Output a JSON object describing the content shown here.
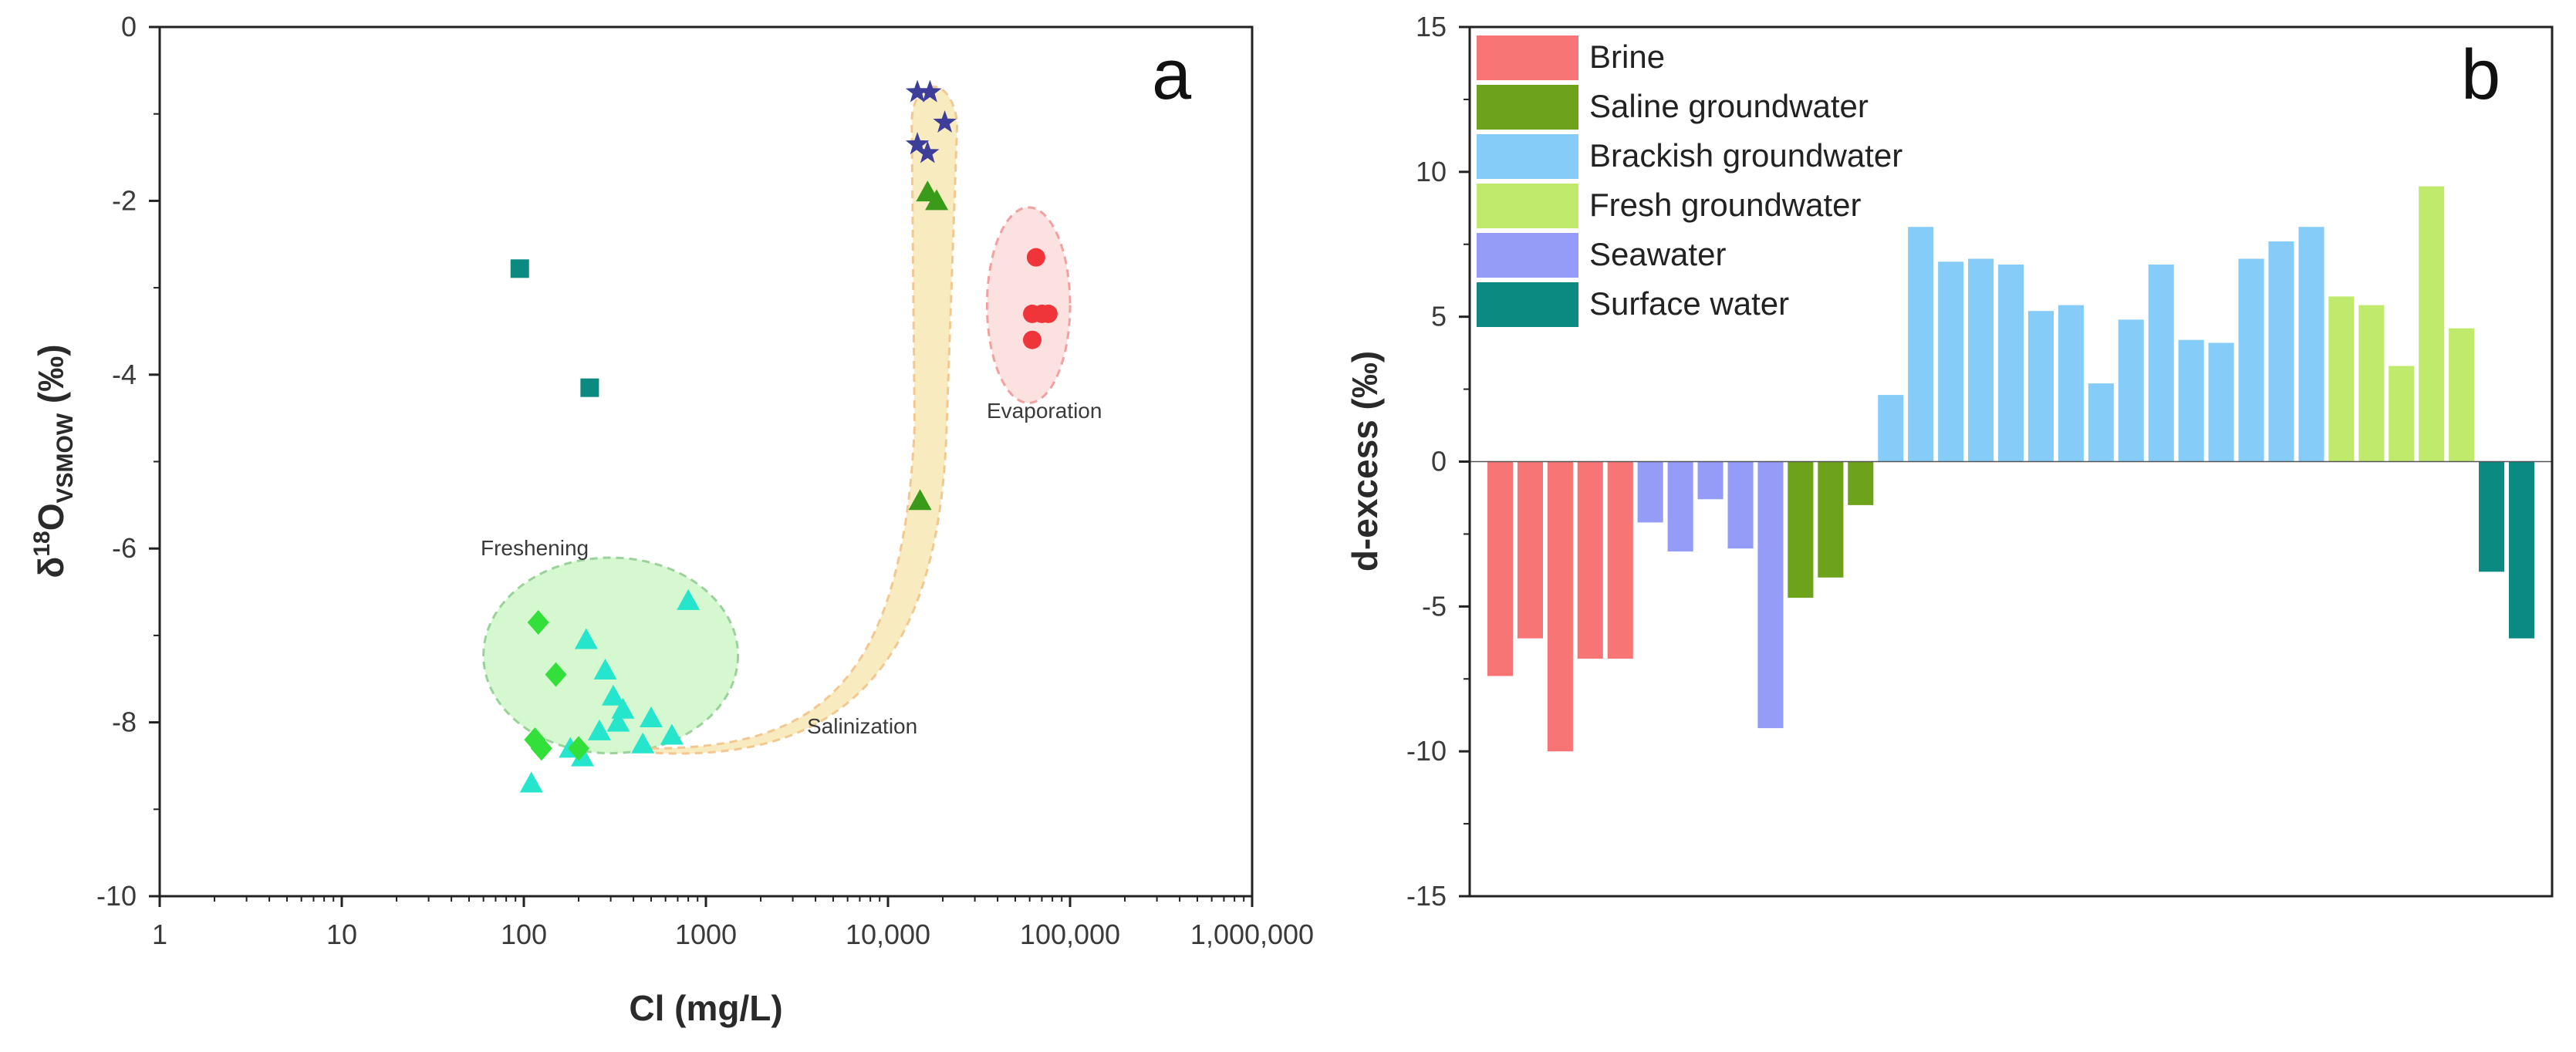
{
  "chart_data": [
    {
      "type": "scatter",
      "panel_label": "a",
      "title": "",
      "xlabel": "Cl (mg/L)",
      "ylabel_main": "δ",
      "ylabel_sup": "18",
      "ylabel_mid": "O",
      "ylabel_sub": "VSMOW",
      "ylabel_end": " (‰)",
      "xscale": "log",
      "xlim": [
        1,
        1000000
      ],
      "ylim": [
        -10,
        0
      ],
      "xticks": [
        {
          "v": 1,
          "label": "1"
        },
        {
          "v": 10,
          "label": "10"
        },
        {
          "v": 100,
          "label": "100"
        },
        {
          "v": 1000,
          "label": "1000"
        },
        {
          "v": 10000,
          "label": "10,000"
        },
        {
          "v": 100000,
          "label": "100,000"
        },
        {
          "v": 1000000,
          "label": "1,000,000"
        }
      ],
      "yticks": [
        {
          "v": 0,
          "label": "0"
        },
        {
          "v": -2,
          "label": "-2"
        },
        {
          "v": -4,
          "label": "-4"
        },
        {
          "v": -6,
          "label": "-6"
        },
        {
          "v": -8,
          "label": "-8"
        },
        {
          "v": -10,
          "label": "-10"
        }
      ],
      "regions": [
        {
          "name": "Freshening",
          "label": "Freshening",
          "color": "#c8f5c0",
          "edge": "#9ad29a"
        },
        {
          "name": "Salinization",
          "label": "Salinization",
          "color": "#f8e7b5",
          "edge": "#f2c890"
        },
        {
          "name": "Evaporation",
          "label": "Evaporation",
          "color": "#fbdada",
          "edge": "#f2a0a0"
        }
      ],
      "series": [
        {
          "name": "Brine",
          "marker": "circle",
          "color": "#f0353a",
          "points": [
            [
              65000,
              -2.65
            ],
            [
              62000,
              -3.3
            ],
            [
              70000,
              -3.3
            ],
            [
              76000,
              -3.3
            ],
            [
              62000,
              -3.6
            ]
          ]
        },
        {
          "name": "Saline groundwater",
          "marker": "triangle",
          "color": "#3a9a1a",
          "points": [
            [
              16500,
              -1.9
            ],
            [
              18500,
              -2.0
            ],
            [
              15000,
              -5.45
            ]
          ]
        },
        {
          "name": "Brackish groundwater",
          "marker": "triangle",
          "color": "#25e6cc",
          "points": [
            [
              800,
              -6.6
            ],
            [
              220,
              -7.05
            ],
            [
              280,
              -7.4
            ],
            [
              310,
              -7.7
            ],
            [
              350,
              -7.85
            ],
            [
              330,
              -8.0
            ],
            [
              500,
              -7.95
            ],
            [
              260,
              -8.1
            ],
            [
              650,
              -8.15
            ],
            [
              450,
              -8.25
            ],
            [
              180,
              -8.3
            ],
            [
              210,
              -8.4
            ],
            [
              110,
              -8.7
            ]
          ]
        },
        {
          "name": "Fresh groundwater",
          "marker": "diamond",
          "color": "#33e03a",
          "points": [
            [
              120,
              -6.85
            ],
            [
              150,
              -7.45
            ],
            [
              115,
              -8.2
            ],
            [
              125,
              -8.3
            ],
            [
              200,
              -8.3
            ]
          ]
        },
        {
          "name": "Seawater",
          "marker": "star",
          "color": "#3d3d9a",
          "points": [
            [
              14500,
              -0.75
            ],
            [
              17000,
              -0.75
            ],
            [
              20500,
              -1.1
            ],
            [
              14500,
              -1.35
            ],
            [
              16500,
              -1.45
            ]
          ]
        },
        {
          "name": "Surface water",
          "marker": "square",
          "color": "#0a8a80",
          "points": [
            [
              95,
              -2.78
            ],
            [
              230,
              -4.15
            ]
          ]
        }
      ]
    },
    {
      "type": "bar",
      "panel_label": "b",
      "title": "",
      "xlabel": "",
      "ylabel": "d-excess (‰)",
      "ylim": [
        -15,
        15
      ],
      "yticks": [
        {
          "v": 15,
          "label": "15"
        },
        {
          "v": 10,
          "label": "10"
        },
        {
          "v": 5,
          "label": "5"
        },
        {
          "v": 0,
          "label": "0"
        },
        {
          "v": -5,
          "label": "-5"
        },
        {
          "v": -10,
          "label": "-10"
        },
        {
          "v": -15,
          "label": "-15"
        }
      ],
      "series": [
        {
          "name": "Brine",
          "color": "#f87575",
          "values": [
            -7.4,
            -6.1,
            -10.0,
            -6.8,
            -6.8
          ]
        },
        {
          "name": "Seawater",
          "color": "#949cf8",
          "values": [
            -2.1,
            -3.1,
            -1.3,
            -3.0,
            -9.2
          ]
        },
        {
          "name": "Saline groundwater",
          "color": "#6da31b",
          "values": [
            -4.7,
            -4.0,
            -1.5
          ]
        },
        {
          "name": "Brackish groundwater",
          "color": "#85cdf8",
          "values": [
            2.3,
            8.1,
            6.9,
            7.0,
            6.8,
            5.2,
            5.4,
            2.7,
            4.9,
            6.8,
            4.2,
            4.1,
            7.0,
            7.6,
            8.1
          ]
        },
        {
          "name": "Fresh groundwater",
          "color": "#c0ea6c",
          "values": [
            5.7,
            5.4,
            3.3,
            9.5,
            4.6
          ]
        },
        {
          "name": "Surface water",
          "color": "#0a8a80",
          "values": [
            -3.8,
            -6.1
          ]
        }
      ],
      "legend": [
        {
          "label": "Brine",
          "color": "#f87575"
        },
        {
          "label": "Saline groundwater",
          "color": "#6da31b"
        },
        {
          "label": "Brackish groundwater",
          "color": "#85cdf8"
        },
        {
          "label": "Fresh groundwater",
          "color": "#c0ea6c"
        },
        {
          "label": "Seawater",
          "color": "#949cf8"
        },
        {
          "label": "Surface water",
          "color": "#0a8a80"
        }
      ],
      "legend_position": "top-left"
    }
  ]
}
